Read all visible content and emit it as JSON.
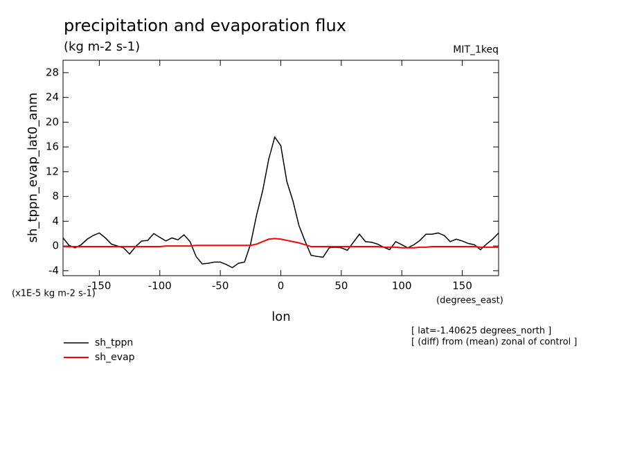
{
  "chart_data": {
    "type": "line",
    "title": "precipitation and evaporation flux",
    "subtitle": "(kg m-2 s-1)",
    "dataset_label": "MIT_1keq",
    "y_label": "sh_tppn_evap_lat0_anm",
    "y_units": "(x1E-5 kg m-2 s-1)",
    "x_label": "lon",
    "x_units": "(degrees_east)",
    "notes": [
      "[ lat=-1.40625 degrees_north ]",
      "[ (diff) from (mean) zonal of control ]"
    ],
    "x": [
      -180,
      -175,
      -170,
      -165,
      -160,
      -155,
      -150,
      -145,
      -140,
      -135,
      -130,
      -125,
      -120,
      -115,
      -110,
      -105,
      -100,
      -95,
      -90,
      -85,
      -80,
      -75,
      -70,
      -65,
      -60,
      -55,
      -50,
      -45,
      -40,
      -35,
      -30,
      -25,
      -20,
      -15,
      -10,
      -5,
      0,
      5,
      10,
      15,
      20,
      25,
      30,
      35,
      40,
      45,
      50,
      55,
      60,
      65,
      70,
      75,
      80,
      85,
      90,
      95,
      100,
      105,
      110,
      115,
      120,
      125,
      130,
      135,
      140,
      145,
      150,
      155,
      160,
      165,
      170,
      175,
      180
    ],
    "series": [
      {
        "name": "sh_tppn",
        "color": "#000000",
        "values": [
          1.3,
          0.1,
          -0.3,
          0.2,
          1.1,
          1.7,
          2.1,
          1.3,
          0.3,
          0,
          -0.3,
          -1.3,
          -0.1,
          0.8,
          0.9,
          2.0,
          1.4,
          0.8,
          1.3,
          1.0,
          1.8,
          0.7,
          -1.7,
          -2.9,
          -2.8,
          -2.6,
          -2.6,
          -3.0,
          -3.5,
          -2.8,
          -2.6,
          0.3,
          5.0,
          8.9,
          14,
          17.6,
          16.2,
          10.4,
          7.3,
          3.3,
          0.8,
          -1.5,
          -1.7,
          -1.8,
          -0.3,
          -0.2,
          -0.3,
          -0.7,
          0.6,
          1.9,
          0.7,
          0.6,
          0.3,
          -0.2,
          -0.6,
          0.7,
          0.2,
          -0.3,
          0.2,
          0.9,
          1.9,
          1.9,
          2.1,
          1.7,
          0.7,
          1.1,
          0.8,
          0.4,
          0.2,
          -0.6,
          0.3,
          1.1,
          2.1
        ]
      },
      {
        "name": "sh_evap",
        "color": "#ff0000",
        "values": [
          -0.1,
          -0.1,
          -0.1,
          -0.1,
          -0.1,
          -0.1,
          -0.1,
          -0.1,
          -0.1,
          -0.1,
          -0.1,
          -0.1,
          -0.1,
          -0.1,
          -0.1,
          -0.1,
          -0.1,
          0,
          0,
          0,
          0,
          0,
          0.1,
          0.1,
          0.1,
          0.1,
          0.1,
          0.1,
          0.1,
          0.1,
          0.1,
          0.1,
          0.3,
          0.7,
          1.1,
          1.2,
          1.1,
          0.9,
          0.7,
          0.5,
          0.2,
          -0.1,
          -0.1,
          -0.1,
          -0.1,
          -0.1,
          -0.1,
          -0.1,
          -0.1,
          -0.1,
          -0.1,
          -0.1,
          -0.1,
          -0.2,
          -0.2,
          -0.2,
          -0.3,
          -0.3,
          -0.3,
          -0.2,
          -0.2,
          -0.1,
          -0.1,
          -0.1,
          -0.1,
          -0.1,
          -0.1,
          -0.1,
          -0.1,
          -0.2,
          -0.2,
          -0.2,
          -0.2
        ]
      }
    ],
    "xlim": [
      -180,
      180
    ],
    "xticks": [
      -150,
      -100,
      -50,
      0,
      50,
      100,
      150
    ],
    "ylim": [
      -4.8,
      30
    ],
    "yticks": [
      -4,
      0,
      4,
      8,
      12,
      16,
      20,
      24,
      28
    ],
    "legend": "bottom-left"
  }
}
